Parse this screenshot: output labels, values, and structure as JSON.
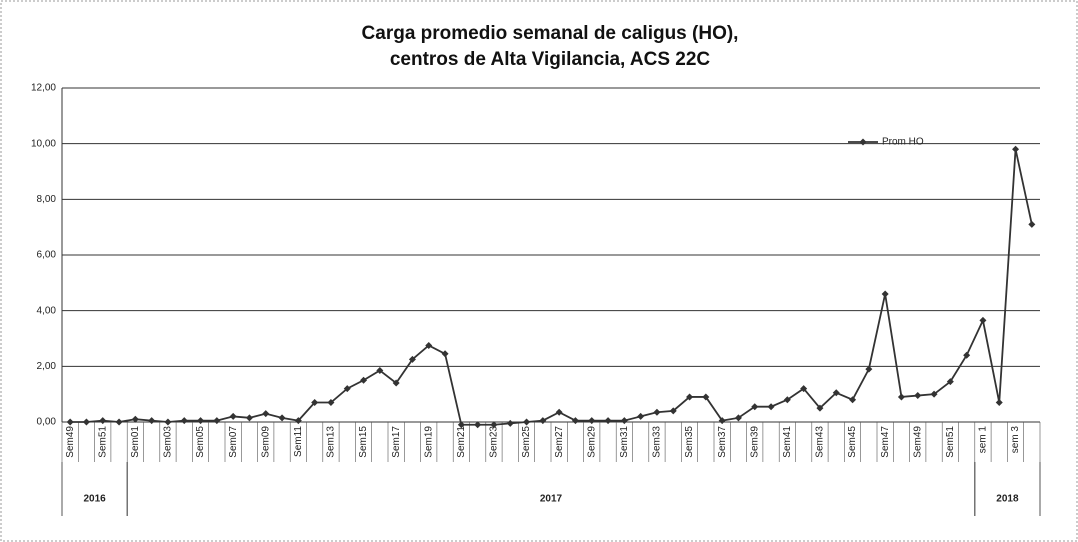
{
  "chart_data": {
    "type": "line",
    "title": [
      "Carga promedio semanal de caligus (HO),",
      "centros de Alta Vigilancia, ACS 22C"
    ],
    "categories": [
      "Sem49",
      null,
      "Sem51",
      null,
      "Sem01",
      null,
      "Sem03",
      null,
      "Sem05",
      null,
      "Sem07",
      null,
      "Sem09",
      null,
      "Sem11",
      null,
      "Sem13",
      null,
      "Sem15",
      null,
      "Sem17",
      null,
      "Sem19",
      null,
      "Sem21",
      null,
      "Sem23",
      null,
      "Sem25",
      null,
      "Sem27",
      null,
      "Sem29",
      null,
      "Sem31",
      null,
      "Sem33",
      null,
      "Sem35",
      null,
      "Sem37",
      null,
      "Sem39",
      null,
      "Sem41",
      null,
      "Sem43",
      null,
      "Sem45",
      null,
      "Sem47",
      null,
      "Sem49",
      null,
      "Sem51",
      null,
      "sem 1",
      null,
      "sem 3",
      null
    ],
    "years": [
      {
        "label": "2016",
        "span": 4
      },
      {
        "label": "2017",
        "span": 52
      },
      {
        "label": "2018",
        "span": 4
      }
    ],
    "series": [
      {
        "name": "Prom HO",
        "color": "#333333",
        "values": [
          0,
          0,
          0.05,
          0,
          0.1,
          0.05,
          0,
          0.05,
          0.05,
          0.05,
          0.2,
          0.15,
          0.3,
          0.15,
          0.05,
          0.7,
          0.7,
          1.2,
          1.5,
          1.85,
          1.4,
          2.25,
          2.75,
          2.45,
          -0.1,
          -0.1,
          -0.1,
          -0.05,
          0,
          0.05,
          0.35,
          0.05,
          0.05,
          0.05,
          0.05,
          0.2,
          0.35,
          0.4,
          0.9,
          0.9,
          0.05,
          0.15,
          0.55,
          0.55,
          0.8,
          1.2,
          0.5,
          1.05,
          0.8,
          1.9,
          4.6,
          0.9,
          0.95,
          1.0,
          1.45,
          2.4,
          3.65,
          0.7,
          9.8,
          7.1
        ]
      }
    ],
    "ylim": [
      0,
      12
    ],
    "yticks": [
      {
        "value": 0,
        "label": "0,00"
      },
      {
        "value": 2,
        "label": "2,00"
      },
      {
        "value": 4,
        "label": "4,00"
      },
      {
        "value": 6,
        "label": "6,00"
      },
      {
        "value": 8,
        "label": "8,00"
      },
      {
        "value": 10,
        "label": "10,00"
      },
      {
        "value": 12,
        "label": "12,00"
      }
    ],
    "grid": true,
    "legend": "top-right"
  }
}
